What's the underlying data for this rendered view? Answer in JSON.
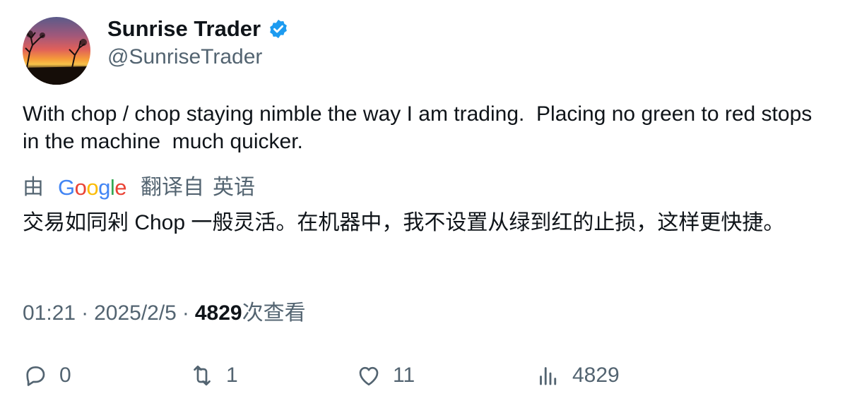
{
  "author": {
    "display_name": "Sunrise Trader",
    "handle": "@SunriseTrader",
    "verified_icon": "verified-badge-icon",
    "avatar": "sunset-landscape-avatar"
  },
  "tweet": {
    "text": "With chop / chop staying nimble the way I am trading.  Placing no green to red stops in the machine  much quicker."
  },
  "translation": {
    "prefix": "由",
    "provider_letters": [
      "G",
      "o",
      "o",
      "g",
      "l",
      "e"
    ],
    "translated_from": "翻译自",
    "source_language": "英语",
    "text": "交易如同剁 Chop 一般灵活。在机器中，我不设置从绿到红的止损，这样更快捷。"
  },
  "meta": {
    "time": "01:21",
    "separator": "·",
    "date": "2025/2/5",
    "views": "4829",
    "views_label": "次查看"
  },
  "actions": {
    "replies": "0",
    "retweets": "1",
    "likes": "11",
    "views": "4829"
  },
  "colors": {
    "text": "#0f1419",
    "secondary": "#536471",
    "verified": "#1d9bf0"
  }
}
